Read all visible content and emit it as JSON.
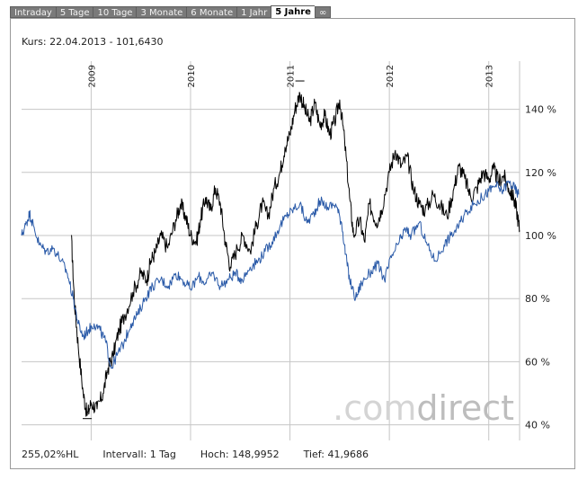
{
  "tabs": [
    {
      "label": "Intraday",
      "active": false
    },
    {
      "label": "5 Tage",
      "active": false
    },
    {
      "label": "10 Tage",
      "active": false
    },
    {
      "label": "3 Monate",
      "active": false
    },
    {
      "label": "6 Monate",
      "active": false
    },
    {
      "label": "1 Jahr",
      "active": false
    },
    {
      "label": "5 Jahre",
      "active": true
    },
    {
      "label": "∞",
      "active": false
    }
  ],
  "header": {
    "kurs": "Kurs: 22.04.2013 - 101,6430"
  },
  "footer": {
    "performance": "255,02%HL",
    "interval": "Intervall: 1 Tag",
    "high": "Hoch: 148,9952",
    "low": "Tief: 41,9686"
  },
  "watermark": {
    "brand_light": ".com",
    "brand_dark": "direct"
  },
  "chart_data": {
    "type": "line",
    "x_ticks": [
      "2009",
      "2010",
      "2011",
      "2012",
      "2013"
    ],
    "y_ticks": [
      {
        "value": 40,
        "label": "40 %"
      },
      {
        "value": 60,
        "label": "60 %"
      },
      {
        "value": 80,
        "label": "80 %"
      },
      {
        "value": 100,
        "label": "100 %"
      },
      {
        "value": 120,
        "label": "120 %"
      },
      {
        "value": 140,
        "label": "140 %"
      }
    ],
    "ylim": [
      36,
      152
    ],
    "xlim": [
      2008.3,
      2013.31
    ],
    "grid": true,
    "series": [
      {
        "color": "#000000",
        "points": [
          [
            2008.8,
            100
          ],
          [
            2008.83,
            80
          ],
          [
            2008.87,
            65
          ],
          [
            2008.92,
            50
          ],
          [
            2008.96,
            43
          ],
          [
            2009.0,
            47
          ],
          [
            2009.06,
            45
          ],
          [
            2009.12,
            50
          ],
          [
            2009.17,
            58
          ],
          [
            2009.22,
            62
          ],
          [
            2009.28,
            70
          ],
          [
            2009.34,
            75
          ],
          [
            2009.42,
            82
          ],
          [
            2009.5,
            88
          ],
          [
            2009.56,
            86
          ],
          [
            2009.6,
            92
          ],
          [
            2009.65,
            95
          ],
          [
            2009.7,
            100
          ],
          [
            2009.77,
            96
          ],
          [
            2009.85,
            105
          ],
          [
            2009.9,
            110
          ],
          [
            2009.95,
            106
          ],
          [
            2010.0,
            100
          ],
          [
            2010.06,
            98
          ],
          [
            2010.1,
            105
          ],
          [
            2010.15,
            112
          ],
          [
            2010.2,
            108
          ],
          [
            2010.25,
            115
          ],
          [
            2010.3,
            110
          ],
          [
            2010.35,
            98
          ],
          [
            2010.4,
            90
          ],
          [
            2010.47,
            96
          ],
          [
            2010.53,
            100
          ],
          [
            2010.6,
            95
          ],
          [
            2010.66,
            103
          ],
          [
            2010.72,
            110
          ],
          [
            2010.78,
            106
          ],
          [
            2010.84,
            115
          ],
          [
            2010.9,
            120
          ],
          [
            2010.95,
            128
          ],
          [
            2011.0,
            132
          ],
          [
            2011.05,
            140
          ],
          [
            2011.1,
            145
          ],
          [
            2011.15,
            140
          ],
          [
            2011.2,
            136
          ],
          [
            2011.25,
            142
          ],
          [
            2011.3,
            135
          ],
          [
            2011.35,
            138
          ],
          [
            2011.4,
            132
          ],
          [
            2011.45,
            136
          ],
          [
            2011.5,
            143
          ],
          [
            2011.55,
            130
          ],
          [
            2011.6,
            112
          ],
          [
            2011.64,
            100
          ],
          [
            2011.7,
            105
          ],
          [
            2011.75,
            98
          ],
          [
            2011.8,
            110
          ],
          [
            2011.87,
            104
          ],
          [
            2011.92,
            108
          ],
          [
            2012.0,
            120
          ],
          [
            2012.06,
            127
          ],
          [
            2012.12,
            122
          ],
          [
            2012.18,
            125
          ],
          [
            2012.24,
            115
          ],
          [
            2012.3,
            110
          ],
          [
            2012.36,
            108
          ],
          [
            2012.44,
            113
          ],
          [
            2012.5,
            110
          ],
          [
            2012.58,
            106
          ],
          [
            2012.65,
            115
          ],
          [
            2012.7,
            122
          ],
          [
            2012.76,
            118
          ],
          [
            2012.82,
            112
          ],
          [
            2012.88,
            115
          ],
          [
            2012.94,
            120
          ],
          [
            2013.0,
            118
          ],
          [
            2013.05,
            121
          ],
          [
            2013.1,
            117
          ],
          [
            2013.15,
            119
          ],
          [
            2013.2,
            115
          ],
          [
            2013.25,
            112
          ],
          [
            2013.28,
            108
          ],
          [
            2013.31,
            101.6
          ]
        ]
      },
      {
        "color": "#2a5aa8",
        "points": [
          [
            2008.3,
            100
          ],
          [
            2008.35,
            104
          ],
          [
            2008.38,
            107
          ],
          [
            2008.42,
            103
          ],
          [
            2008.48,
            97
          ],
          [
            2008.55,
            95
          ],
          [
            2008.62,
            96
          ],
          [
            2008.7,
            92
          ],
          [
            2008.76,
            88
          ],
          [
            2008.82,
            80
          ],
          [
            2008.87,
            72
          ],
          [
            2008.92,
            68
          ],
          [
            2008.97,
            70
          ],
          [
            2009.03,
            72
          ],
          [
            2009.09,
            70
          ],
          [
            2009.15,
            66
          ],
          [
            2009.2,
            58
          ],
          [
            2009.26,
            62
          ],
          [
            2009.33,
            66
          ],
          [
            2009.4,
            72
          ],
          [
            2009.47,
            75
          ],
          [
            2009.54,
            80
          ],
          [
            2009.62,
            84
          ],
          [
            2009.7,
            86
          ],
          [
            2009.78,
            84
          ],
          [
            2009.85,
            88
          ],
          [
            2009.92,
            86
          ],
          [
            2010.0,
            83
          ],
          [
            2010.08,
            87
          ],
          [
            2010.15,
            85
          ],
          [
            2010.22,
            88
          ],
          [
            2010.3,
            84
          ],
          [
            2010.38,
            86
          ],
          [
            2010.45,
            88
          ],
          [
            2010.52,
            86
          ],
          [
            2010.6,
            90
          ],
          [
            2010.68,
            92
          ],
          [
            2010.75,
            95
          ],
          [
            2010.82,
            98
          ],
          [
            2010.9,
            103
          ],
          [
            2010.96,
            106
          ],
          [
            2011.02,
            108
          ],
          [
            2011.1,
            110
          ],
          [
            2011.17,
            104
          ],
          [
            2011.24,
            107
          ],
          [
            2011.3,
            111
          ],
          [
            2011.38,
            109
          ],
          [
            2011.46,
            110
          ],
          [
            2011.52,
            104
          ],
          [
            2011.56,
            94
          ],
          [
            2011.6,
            86
          ],
          [
            2011.66,
            80
          ],
          [
            2011.72,
            85
          ],
          [
            2011.8,
            88
          ],
          [
            2011.88,
            91
          ],
          [
            2011.95,
            86
          ],
          [
            2012.02,
            93
          ],
          [
            2012.1,
            98
          ],
          [
            2012.16,
            102
          ],
          [
            2012.22,
            100
          ],
          [
            2012.3,
            104
          ],
          [
            2012.38,
            97
          ],
          [
            2012.46,
            92
          ],
          [
            2012.55,
            97
          ],
          [
            2012.62,
            100
          ],
          [
            2012.7,
            103
          ],
          [
            2012.78,
            108
          ],
          [
            2012.86,
            110
          ],
          [
            2012.93,
            112
          ],
          [
            2013.0,
            114
          ],
          [
            2013.07,
            116
          ],
          [
            2013.13,
            114
          ],
          [
            2013.2,
            117
          ],
          [
            2013.26,
            115
          ],
          [
            2013.3,
            113
          ]
        ]
      }
    ]
  }
}
